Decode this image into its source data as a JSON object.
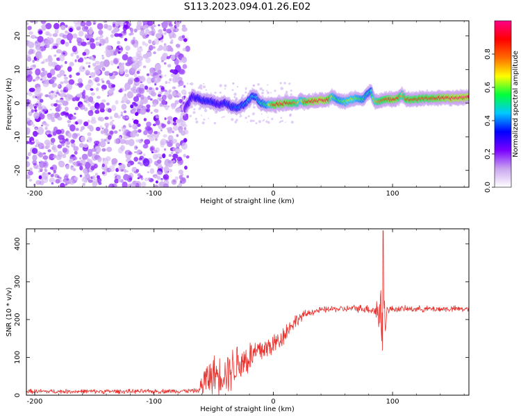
{
  "figure": {
    "title": "S113.2023.094.01.26.E02"
  },
  "chart_data": [
    {
      "type": "heatmap",
      "xlabel": "Height of straight line (km)",
      "ylabel": "Frequency (Hz)",
      "xlim": [
        -207,
        164
      ],
      "ylim": [
        -25,
        24.5
      ],
      "xticks": [
        -200,
        -100,
        0,
        100
      ],
      "xtick_labels": [
        "-200",
        "-100",
        "0",
        "100"
      ],
      "yticks": [
        -20,
        -10,
        0,
        10,
        20
      ],
      "ytick_labels": [
        "-20",
        "-10",
        "0",
        "10",
        "20"
      ],
      "grid": false,
      "noise_region_x": [
        -207,
        -74
      ],
      "ridge": {
        "description_values": "frequency of the dominant signal ridge vs height",
        "x": [
          -74,
          -68,
          -60,
          -52,
          -45,
          -40,
          -35,
          -30,
          -25,
          -20,
          -17,
          -14,
          -10,
          -5,
          0,
          5,
          10,
          15,
          20,
          23,
          26,
          30,
          40,
          46,
          50,
          54,
          60,
          65,
          70,
          75,
          78,
          82,
          85,
          90,
          95,
          100,
          104,
          108,
          112,
          120,
          130,
          140,
          150,
          160,
          164
        ],
        "freq": [
          -1.5,
          2.0,
          1.0,
          0.5,
          -0.5,
          0.0,
          -1.0,
          -1.5,
          -0.5,
          1.0,
          2.5,
          1.5,
          0.0,
          -0.5,
          -0.3,
          -0.2,
          0.0,
          0.2,
          0.0,
          0.8,
          0.3,
          0.5,
          0.8,
          1.0,
          2.0,
          1.0,
          0.3,
          1.0,
          1.5,
          1.0,
          2.5,
          3.5,
          0.5,
          0.8,
          1.0,
          1.2,
          1.5,
          2.5,
          1.0,
          1.2,
          1.5,
          1.5,
          1.5,
          1.7,
          1.8
        ],
        "amplitude": [
          0.25,
          0.3,
          0.35,
          0.35,
          0.3,
          0.35,
          0.35,
          0.4,
          0.4,
          0.45,
          0.45,
          0.45,
          0.5,
          0.55,
          0.85,
          0.9,
          0.9,
          0.85,
          0.75,
          0.6,
          0.8,
          0.9,
          0.95,
          0.9,
          0.6,
          0.55,
          0.6,
          0.65,
          0.6,
          0.55,
          0.5,
          0.5,
          0.7,
          0.8,
          0.85,
          0.9,
          0.9,
          0.7,
          0.85,
          0.85,
          0.85,
          0.9,
          0.95,
          0.95,
          0.95
        ]
      },
      "colorbar": {
        "label": "Normalized spectral amplitude",
        "range": [
          0.0,
          1.0
        ],
        "ticks": [
          0.0,
          0.2,
          0.4,
          0.6,
          0.8
        ],
        "tick_labels": [
          "0.0",
          "0.2",
          "0.4",
          "0.6",
          "0.8"
        ],
        "colormap": [
          "#ffffff",
          "#c9a6ef",
          "#7a00ff",
          "#0000ff",
          "#00c8ff",
          "#00ff3c",
          "#ffff00",
          "#ff6a00",
          "#ff0000",
          "#ff0088"
        ]
      }
    },
    {
      "type": "line",
      "xlabel": "Height of straight line (km)",
      "ylabel": "SNR (10 * v/v)",
      "xlim": [
        -207,
        164
      ],
      "ylim": [
        0,
        440
      ],
      "xticks": [
        -200,
        -100,
        0,
        100
      ],
      "xtick_labels": [
        "-200",
        "-100",
        "0",
        "100"
      ],
      "yticks": [
        0,
        100,
        200,
        300,
        400
      ],
      "ytick_labels": [
        "0",
        "100",
        "200",
        "300",
        "400"
      ],
      "grid": false,
      "color": "#e8302c",
      "envelope": {
        "x": [
          -207,
          -150,
          -100,
          -62,
          -60,
          -55,
          -50,
          -45,
          -40,
          -35,
          -30,
          -25,
          -20,
          -15,
          -10,
          -5,
          0,
          5,
          10,
          15,
          20,
          25,
          30,
          35,
          40,
          50,
          60,
          70,
          80,
          85,
          90,
          92,
          95,
          100,
          120,
          140,
          164
        ],
        "mean": [
          10,
          10,
          10,
          12,
          30,
          45,
          55,
          55,
          60,
          70,
          85,
          90,
          100,
          110,
          120,
          125,
          135,
          145,
          165,
          185,
          200,
          210,
          218,
          222,
          225,
          228,
          228,
          230,
          228,
          225,
          215,
          180,
          225,
          228,
          228,
          228,
          228
        ],
        "noise": [
          7,
          7,
          7,
          7,
          50,
          55,
          60,
          60,
          65,
          70,
          70,
          65,
          55,
          50,
          45,
          40,
          35,
          35,
          30,
          25,
          20,
          15,
          12,
          10,
          10,
          10,
          10,
          12,
          14,
          22,
          90,
          220,
          14,
          10,
          10,
          10,
          10
        ]
      },
      "spike": {
        "x": 92,
        "y": 435
      }
    }
  ]
}
